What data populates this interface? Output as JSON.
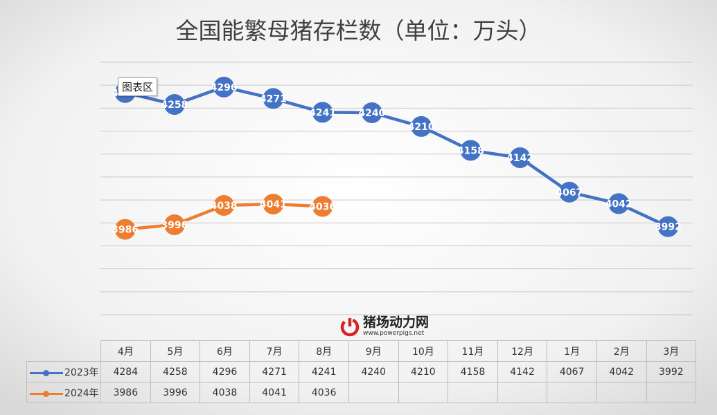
{
  "chart_data": {
    "type": "line",
    "title": "全国能繁母猪存栏数（单位：万头）",
    "categories": [
      "4月",
      "5月",
      "6月",
      "7月",
      "8月",
      "9月",
      "10月",
      "11月",
      "12月",
      "1月",
      "2月",
      "3月"
    ],
    "series": [
      {
        "name": "2023年",
        "color": "#4472c4",
        "values": [
          4284,
          4258,
          4296,
          4271,
          4241,
          4240,
          4210,
          4158,
          4142,
          4067,
          4042,
          3992
        ]
      },
      {
        "name": "2024年",
        "color": "#ed7d31",
        "values": [
          3986,
          3996,
          4038,
          4041,
          4036,
          null,
          null,
          null,
          null,
          null,
          null,
          null
        ]
      }
    ],
    "ylim": [
      3800,
      4350
    ],
    "gridlines": true,
    "data_labels": true,
    "legend": "data-table"
  },
  "tooltip_text": "图表区",
  "watermark": {
    "name": "猪场动力网",
    "url": "www.powerpigs.net"
  }
}
